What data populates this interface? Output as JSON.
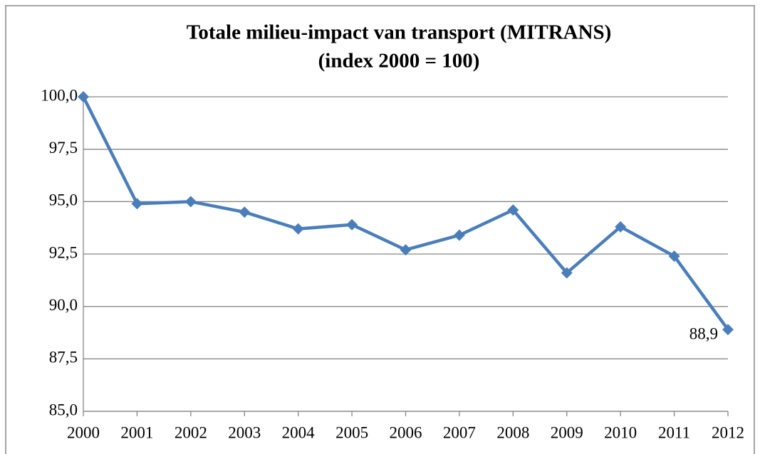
{
  "chart_data": {
    "type": "line",
    "title": "Totale milieu-impact van transport (MITRANS)",
    "subtitle": "(index 2000 = 100)",
    "categories": [
      "2000",
      "2001",
      "2002",
      "2003",
      "2004",
      "2005",
      "2006",
      "2007",
      "2008",
      "2009",
      "2010",
      "2011",
      "2012"
    ],
    "series": [
      {
        "name": "MITRANS",
        "color": "#4a7ebb",
        "values": [
          100,
          94.9,
          95.0,
          94.5,
          93.7,
          93.9,
          92.7,
          93.4,
          94.6,
          91.6,
          93.8,
          92.4,
          88.9
        ],
        "value_labels": [
          null,
          null,
          null,
          null,
          null,
          null,
          null,
          null,
          null,
          null,
          null,
          null,
          "88,9"
        ]
      }
    ],
    "ylim": [
      85,
      100
    ],
    "yticks": [
      {
        "value": 85,
        "label": "85,0"
      },
      {
        "value": 87.5,
        "label": "87,5"
      },
      {
        "value": 90,
        "label": "90,0"
      },
      {
        "value": 92.5,
        "label": "92,5"
      },
      {
        "value": 95,
        "label": "95,0"
      },
      {
        "value": 97.5,
        "label": "97,5"
      },
      {
        "value": 100,
        "label": "100,0"
      }
    ],
    "grid": true
  }
}
